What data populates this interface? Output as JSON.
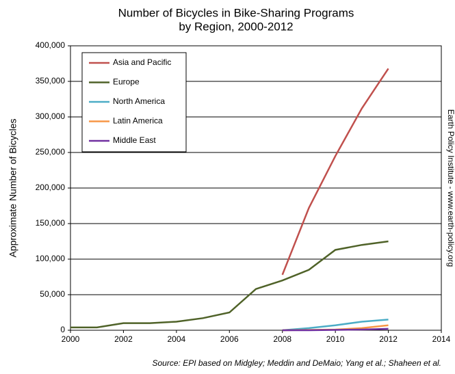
{
  "chart_data": {
    "type": "line",
    "title": [
      "Number of Bicycles in Bike-Sharing Programs",
      "by Region, 2000-2012"
    ],
    "y_label": "Approximate Number of Bicycles",
    "side_note": "Earth Policy Institute - www.earth-policy.org",
    "source": "Source: EPI based on Midgley; Meddin and DeMaio; Yang et al.; Shaheen et al.",
    "x": [
      2000,
      2001,
      2002,
      2003,
      2004,
      2005,
      2006,
      2007,
      2008,
      2009,
      2010,
      2011,
      2012
    ],
    "series": [
      {
        "name": "Asia and Pacific",
        "color": "#c0504d",
        "values": [
          null,
          null,
          null,
          null,
          null,
          null,
          null,
          null,
          78000,
          172000,
          245000,
          312000,
          368000
        ]
      },
      {
        "name": "Europe",
        "color": "#4f6228",
        "values": [
          4000,
          4000,
          10000,
          10000,
          12000,
          17000,
          25000,
          58000,
          70000,
          85000,
          113000,
          120000,
          125000
        ]
      },
      {
        "name": "North America",
        "color": "#4bacc6",
        "values": [
          null,
          null,
          null,
          null,
          null,
          null,
          null,
          null,
          0,
          3000,
          7000,
          12000,
          15000
        ]
      },
      {
        "name": "Latin America",
        "color": "#f79646",
        "values": [
          null,
          null,
          null,
          null,
          null,
          null,
          null,
          null,
          0,
          500,
          1000,
          3000,
          7000
        ]
      },
      {
        "name": "Middle East",
        "color": "#7030a0",
        "values": [
          null,
          null,
          null,
          null,
          null,
          null,
          null,
          null,
          0,
          0,
          500,
          1000,
          2000
        ]
      }
    ],
    "xlim": [
      2000,
      2014
    ],
    "xticks": [
      2000,
      2002,
      2004,
      2006,
      2008,
      2010,
      2012,
      2014
    ],
    "ylim": [
      0,
      400000
    ],
    "yticks": [
      0,
      {
        "value": 50000,
        "label": "50,000"
      },
      {
        "value": 100000,
        "label": "100,000"
      },
      {
        "value": 150000,
        "label": "150,000"
      },
      {
        "value": 200000,
        "label": "200,000"
      },
      {
        "value": 250000,
        "label": "250,000"
      },
      {
        "value": 300000,
        "label": "300,000"
      },
      {
        "value": 350000,
        "label": "350,000"
      },
      {
        "value": 400000,
        "label": "400,000"
      }
    ],
    "grid": true,
    "legend": "upper left"
  }
}
